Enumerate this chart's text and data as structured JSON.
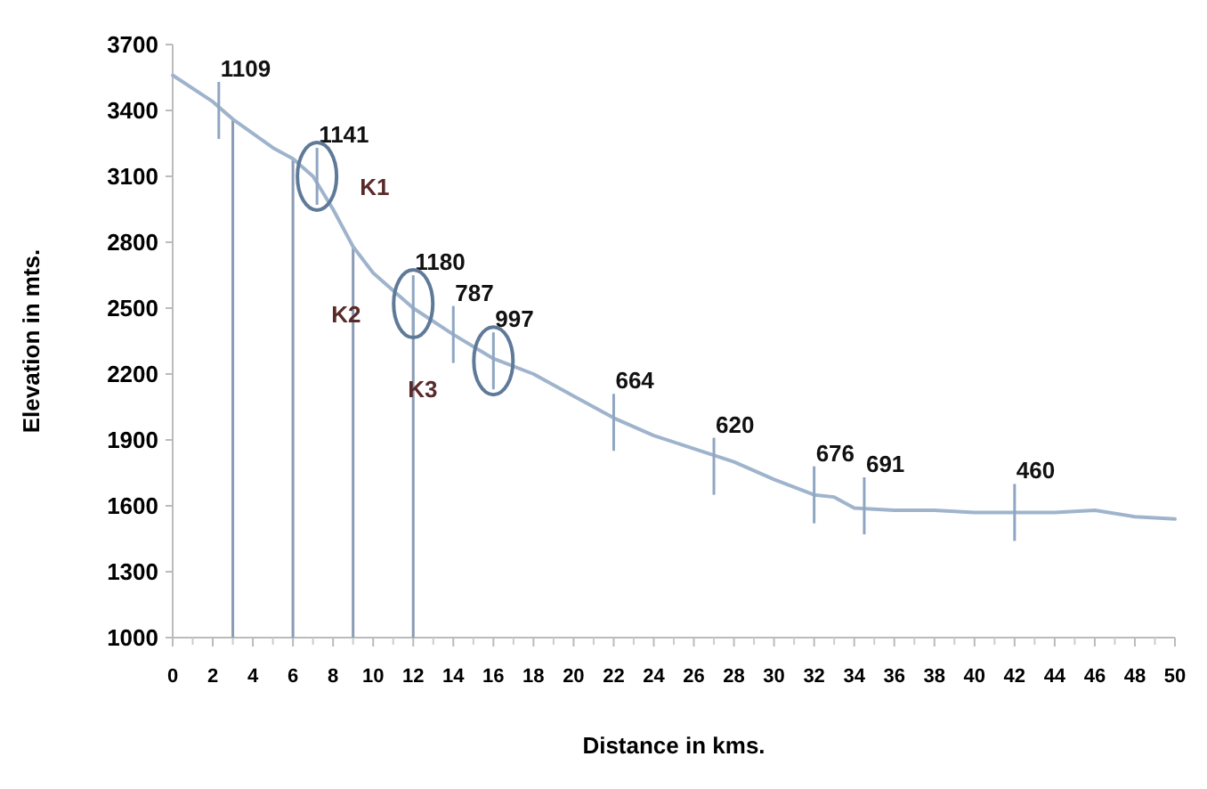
{
  "chart_data": {
    "type": "line",
    "xlabel": "Distance in kms.",
    "ylabel": "Elevation in mts.",
    "x": [
      0,
      2,
      3,
      5,
      6,
      7,
      8,
      9,
      10,
      12,
      14,
      16,
      18,
      20,
      22,
      24,
      26,
      28,
      30,
      32,
      33,
      34,
      36,
      38,
      40,
      42,
      44,
      46,
      48,
      50
    ],
    "series": [
      {
        "color": "#9fb4cc",
        "values": [
          3560,
          3440,
          3360,
          3230,
          3180,
          3100,
          2950,
          2780,
          2660,
          2500,
          2380,
          2270,
          2200,
          2100,
          2000,
          1920,
          1860,
          1800,
          1720,
          1650,
          1640,
          1590,
          1580,
          1580,
          1570,
          1570,
          1570,
          1580,
          1550,
          1540
        ]
      }
    ],
    "xlim": [
      0,
      50
    ],
    "xticks": [
      0,
      2,
      4,
      6,
      8,
      10,
      12,
      14,
      16,
      18,
      20,
      22,
      24,
      26,
      28,
      30,
      32,
      34,
      36,
      38,
      40,
      42,
      44,
      46,
      48,
      50
    ],
    "ylim": [
      1000,
      3700
    ],
    "yticks": [
      1000,
      1300,
      1600,
      1900,
      2200,
      2500,
      2800,
      3100,
      3400,
      3700
    ],
    "grid": false,
    "marker": "none",
    "line_style": "solid",
    "ref_lines": [
      {
        "axis": "x",
        "value": 3,
        "color": "#8a9bb5"
      },
      {
        "axis": "x",
        "value": 6,
        "color": "#8a9bb5"
      },
      {
        "axis": "x",
        "value": 9,
        "color": "#8a9bb5"
      },
      {
        "axis": "x",
        "value": 12,
        "color": "#8a9bb5"
      }
    ],
    "annotations": [
      {
        "text": "1109",
        "x": 2.3,
        "y": 3400
      },
      {
        "text": "1141",
        "x": 7.2,
        "y": 3100
      },
      {
        "text": "1180",
        "x": 12,
        "y": 2520
      },
      {
        "text": "787",
        "x": 14,
        "y": 2380
      },
      {
        "text": "997",
        "x": 16,
        "y": 2260
      },
      {
        "text": "664",
        "x": 22,
        "y": 1980
      },
      {
        "text": "620",
        "x": 27,
        "y": 1780
      },
      {
        "text": "676",
        "x": 32,
        "y": 1650
      },
      {
        "text": "691",
        "x": 34.5,
        "y": 1600
      },
      {
        "text": "460",
        "x": 42,
        "y": 1570
      },
      "K1",
      "K2",
      "K3"
    ]
  }
}
